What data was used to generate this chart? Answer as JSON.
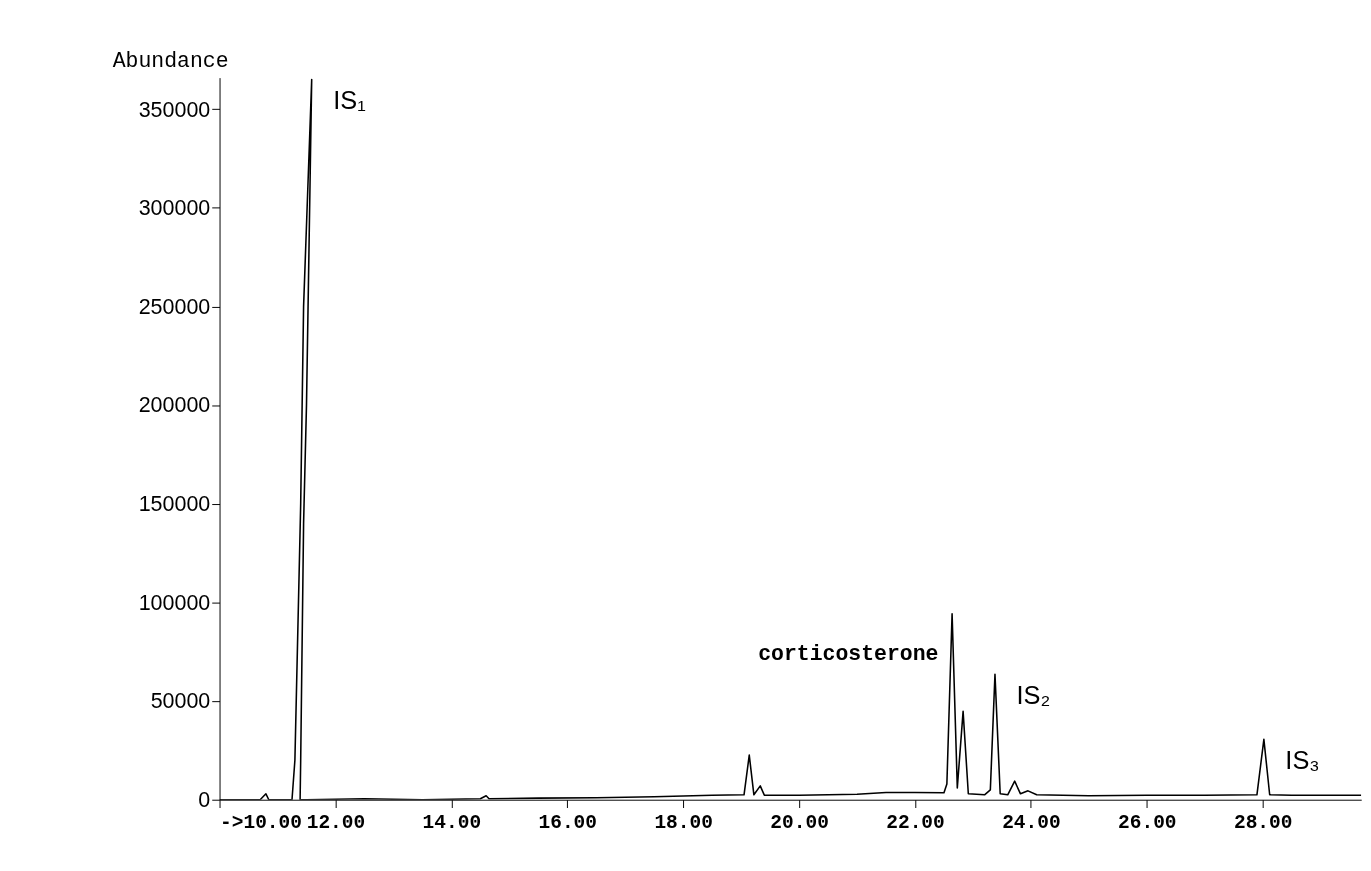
{
  "chart_data": {
    "type": "line",
    "ylabel": "Abundance",
    "x": [
      10.0,
      10.7,
      10.8,
      10.85,
      11.25,
      11.3,
      11.4,
      11.45,
      11.59,
      11.5,
      11.45,
      11.4,
      11.39,
      11.5,
      12.5,
      13.5,
      14.5,
      14.6,
      14.65,
      15.5,
      16.5,
      17.5,
      18.5,
      19.05,
      19.14,
      19.22,
      19.33,
      19.4,
      20.0,
      21.0,
      21.5,
      22.0,
      22.5,
      22.55,
      22.64,
      22.73,
      22.83,
      22.92,
      23.2,
      23.3,
      23.38,
      23.47,
      23.6,
      23.72,
      23.82,
      23.95,
      24.1,
      25.0,
      26.0,
      27.0,
      27.9,
      28.02,
      28.12,
      28.5,
      29.0,
      29.7
    ],
    "series": [
      {
        "color": "#000000",
        "values": [
          0,
          0,
          3000,
          0,
          0,
          20000,
          150000,
          250000,
          365000,
          200000,
          140000,
          20000,
          0,
          0,
          500,
          0,
          500,
          2000,
          500,
          800,
          1000,
          1500,
          2300,
          2500,
          22600,
          2500,
          7000,
          2300,
          2300,
          2800,
          3700,
          3700,
          3500,
          8000,
          94300,
          6000,
          44800,
          3000,
          2500,
          5000,
          63600,
          3000,
          2500,
          9400,
          3000,
          4500,
          2500,
          2000,
          2300,
          2300,
          2500,
          30600,
          2500,
          2300,
          2300,
          2300
        ]
      }
    ],
    "xlim": [
      10,
      29.7
    ],
    "xticks": [
      {
        "value": 10,
        "label": "->10.00"
      },
      {
        "value": 12,
        "label": "12.00"
      },
      {
        "value": 14,
        "label": "14.00"
      },
      {
        "value": 16,
        "label": "16.00"
      },
      {
        "value": 18,
        "label": "18.00"
      },
      {
        "value": 20,
        "label": "20.00"
      },
      {
        "value": 22,
        "label": "22.00"
      },
      {
        "value": 24,
        "label": "24.00"
      },
      {
        "value": 26,
        "label": "26.00"
      },
      {
        "value": 28,
        "label": "28.00"
      }
    ],
    "ylim": [
      0,
      366000
    ],
    "yticks": [
      0,
      50000,
      100000,
      150000,
      200000,
      250000,
      300000,
      350000
    ],
    "annotations": [
      {
        "text": "IS₁",
        "x": 11.59,
        "y": 365000
      },
      {
        "text": "corticosterone",
        "x": 22.64,
        "y": 94300
      },
      {
        "text": "IS₂",
        "x": 23.38,
        "y": 63600
      },
      {
        "text": "IS₃",
        "x": 28.02,
        "y": 30600
      }
    ],
    "grid": false
  }
}
